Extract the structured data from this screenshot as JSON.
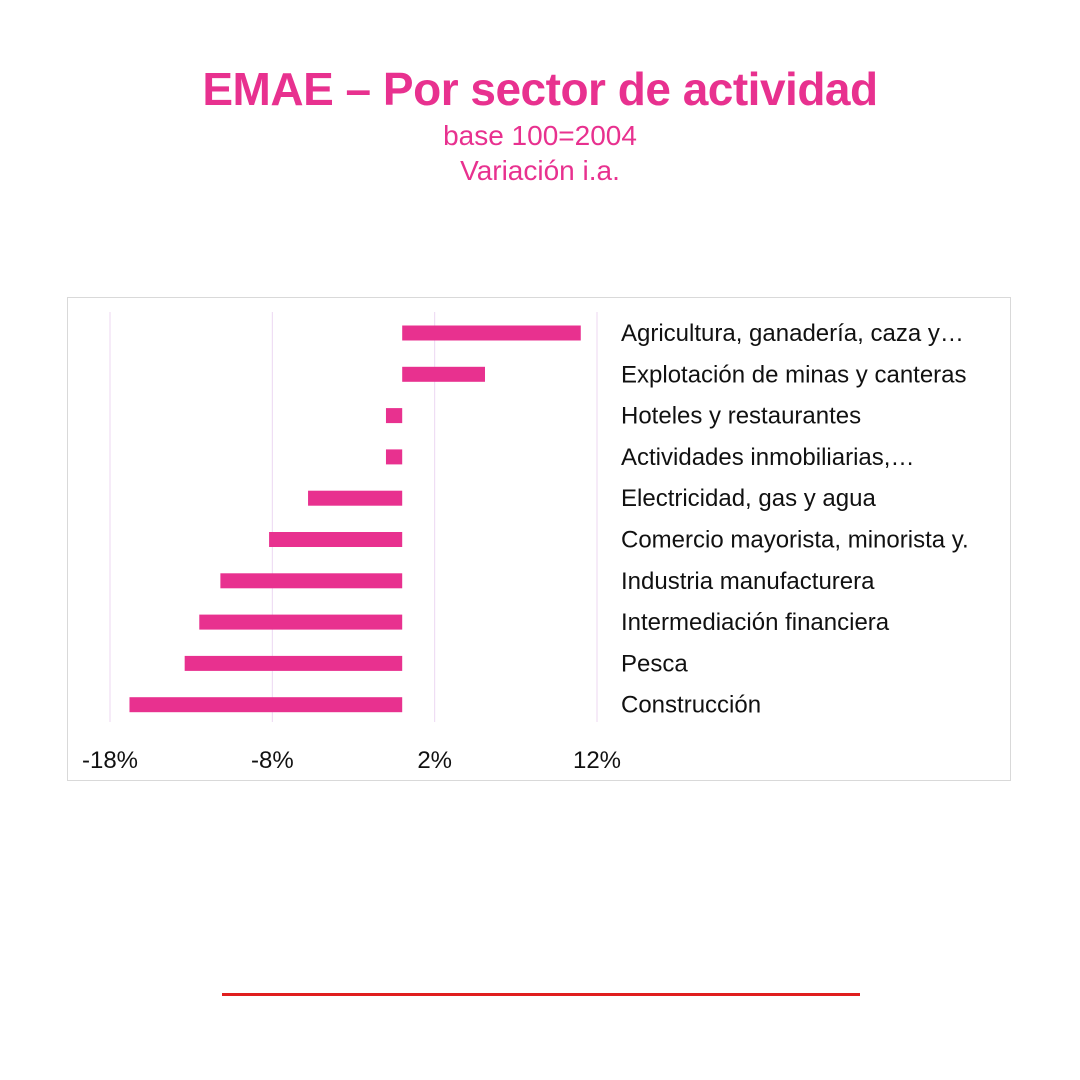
{
  "header": {
    "title": "EMAE – Por sector de actividad",
    "subtitle_1": "base 100=2004",
    "subtitle_2": "Variación i.a."
  },
  "colors": {
    "accent": "#e8318f",
    "bar": "#e8318f",
    "gridline": "#ecd7f2",
    "frame_border": "#d9d9d9",
    "footer_rule": "#e01e1e",
    "label_text": "#111111"
  },
  "chart_data": {
    "type": "bar",
    "orientation": "horizontal",
    "title": "",
    "xlabel": "",
    "ylabel": "",
    "xlim": [
      -20,
      13
    ],
    "xticks": [
      -18,
      -8,
      2,
      12
    ],
    "xtick_labels": [
      "-18%",
      "-8%",
      "2%",
      "12%"
    ],
    "grid": "vertical",
    "legend": "none",
    "categories": [
      "Agricultura, ganadería, caza y…",
      "Explotación de minas y canteras",
      "Hoteles y restaurantes",
      "Actividades inmobiliarias,…",
      "Electricidad, gas y agua",
      "Comercio mayorista, minorista y.",
      "Industria manufacturera",
      "Intermediación financiera",
      "Pesca",
      "Construcción"
    ],
    "values": [
      11.0,
      5.1,
      -1.0,
      -1.0,
      -5.8,
      -8.2,
      -11.2,
      -12.5,
      -13.4,
      -16.8
    ]
  }
}
